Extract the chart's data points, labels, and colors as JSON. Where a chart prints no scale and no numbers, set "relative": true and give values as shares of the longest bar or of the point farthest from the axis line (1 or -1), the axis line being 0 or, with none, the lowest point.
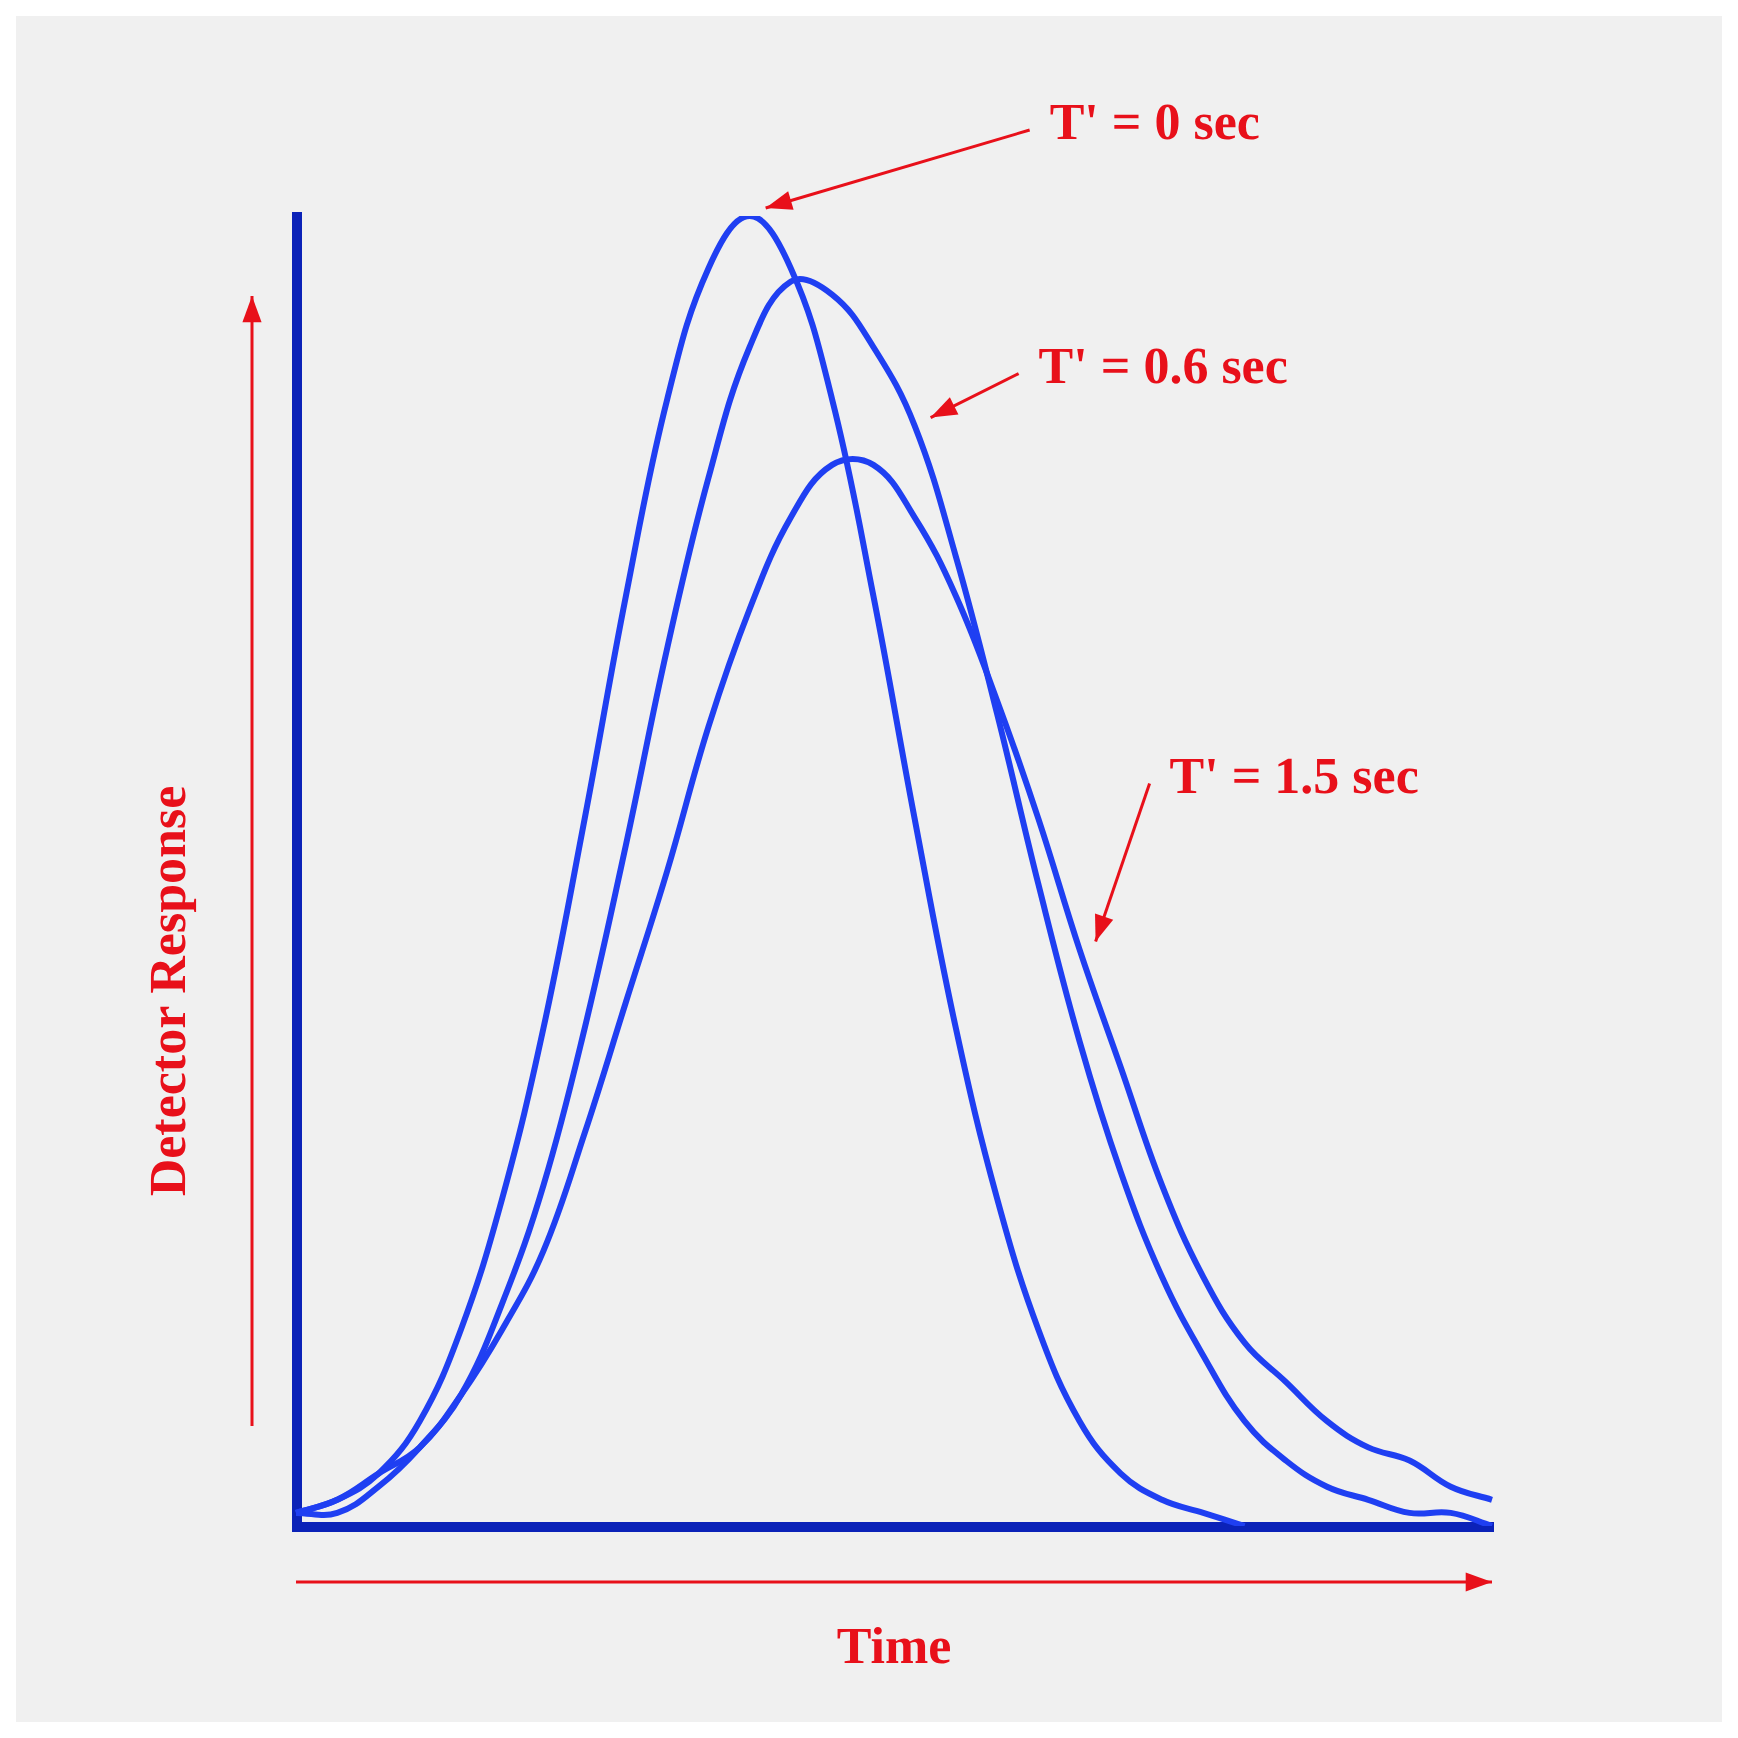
{
  "chart_data": {
    "type": "line",
    "relative": true,
    "xlabel": "Time",
    "ylabel": "Detector Response",
    "legend": false,
    "grid": false,
    "marker": "none",
    "categories": [
      null,
      null,
      null,
      null,
      null,
      null,
      null,
      null,
      null,
      null,
      null,
      null,
      null,
      null,
      null,
      null,
      null,
      null,
      null,
      null,
      null,
      null,
      null,
      null,
      null,
      null,
      null,
      null,
      null,
      null
    ],
    "series": [
      {
        "name": "T' = 0 sec",
        "color": "#1f3ff2",
        "values": [
          0.01,
          0.02,
          0.04,
          0.08,
          0.15,
          0.25,
          0.38,
          0.54,
          0.71,
          0.86,
          0.96,
          1,
          0.96,
          0.86,
          0.71,
          0.54,
          0.38,
          0.25,
          0.15,
          0.08,
          0.04,
          0.02,
          0.01,
          0,
          null,
          null,
          null,
          null,
          null,
          null
        ]
      },
      {
        "name": "T' = 0.6 sec",
        "color": "#1f3ff2",
        "values": [
          0.01,
          0.01,
          0.03,
          0.06,
          0.1,
          0.17,
          0.26,
          0.38,
          0.52,
          0.67,
          0.8,
          0.9,
          0.95,
          0.94,
          0.9,
          0.84,
          0.74,
          0.62,
          0.49,
          0.37,
          0.27,
          0.19,
          0.13,
          0.08,
          0.05,
          0.03,
          0.02,
          0.01,
          0.01,
          0
        ]
      },
      {
        "name": "T' = 1.5 sec",
        "color": "#1f3ff2",
        "values": [
          0.01,
          0.02,
          0.04,
          0.06,
          0.1,
          0.15,
          0.21,
          0.3,
          0.4,
          0.5,
          0.61,
          0.7,
          0.77,
          0.81,
          0.81,
          0.77,
          0.71,
          0.63,
          0.54,
          0.44,
          0.35,
          0.26,
          0.19,
          0.14,
          0.11,
          0.08,
          0.06,
          0.05,
          0.03,
          0.02
        ]
      }
    ]
  }
}
